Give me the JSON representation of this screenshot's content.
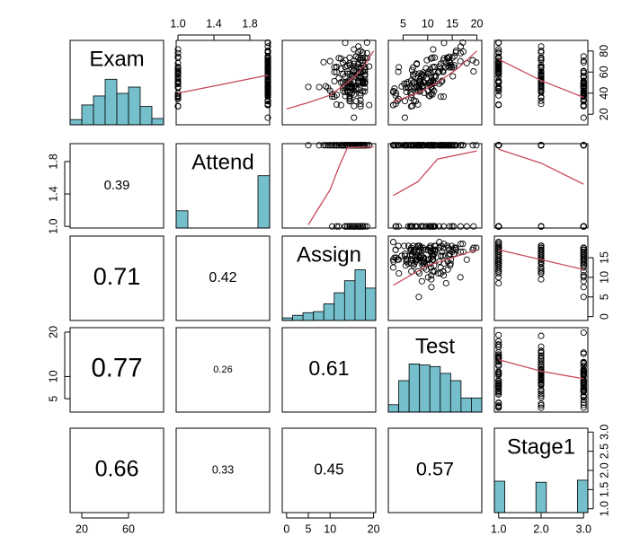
{
  "chart_data": {
    "type": "scatter",
    "variables": [
      "Exam",
      "Attend",
      "Assign",
      "Test",
      "Stage1"
    ],
    "axis_ticks": {
      "top": {
        "Attend": [
          "1.0",
          "1.4",
          "1.8"
        ],
        "Test": [
          "5",
          "10",
          "15",
          "20"
        ]
      },
      "right": {
        "Exam": [
          "20",
          "40",
          "60",
          "80"
        ],
        "Assign": [
          "0",
          "5",
          "10",
          "15"
        ],
        "Stage1": [
          "1.0",
          "1.5",
          "2.0",
          "2.5",
          "3.0"
        ]
      },
      "left": {
        "Attend": [
          "1.0",
          "1.4",
          "1.8"
        ],
        "Test": [
          "5",
          "10",
          "20"
        ]
      },
      "bottom": {
        "Exam": [
          "20",
          "60"
        ],
        "Assign": [
          "0",
          "5",
          "10",
          "20"
        ],
        "Stage1": [
          "1.0",
          "2.0",
          "3.0"
        ]
      }
    },
    "axis_ranges": {
      "Exam": [
        10,
        90
      ],
      "Attend": [
        0.98,
        2.02
      ],
      "Assign": [
        -1,
        20.5
      ],
      "Test": [
        2,
        21
      ],
      "Stage1": [
        0.9,
        3.1
      ]
    },
    "correlations": [
      {
        "row": "Attend",
        "col": "Exam",
        "value": "0.39"
      },
      {
        "row": "Assign",
        "col": "Exam",
        "value": "0.71"
      },
      {
        "row": "Assign",
        "col": "Attend",
        "value": "0.42"
      },
      {
        "row": "Test",
        "col": "Exam",
        "value": "0.77"
      },
      {
        "row": "Test",
        "col": "Attend",
        "value": "0.26"
      },
      {
        "row": "Test",
        "col": "Assign",
        "value": "0.61"
      },
      {
        "row": "Stage1",
        "col": "Exam",
        "value": "0.66"
      },
      {
        "row": "Stage1",
        "col": "Attend",
        "value": "0.33"
      },
      {
        "row": "Stage1",
        "col": "Assign",
        "value": "0.45"
      },
      {
        "row": "Stage1",
        "col": "Test",
        "value": "0.57"
      }
    ],
    "histograms": {
      "Exam": [
        0.1,
        0.38,
        0.55,
        0.87,
        0.6,
        0.72,
        0.35,
        0.12
      ],
      "Attend": [
        0.33,
        0,
        0,
        0,
        0,
        0,
        0,
        1.0
      ],
      "Assign": [
        0.05,
        0.1,
        0.15,
        0.17,
        0.32,
        0.53,
        0.76,
        0.97,
        0.62
      ],
      "Test": [
        0.14,
        0.6,
        0.92,
        0.9,
        0.87,
        0.74,
        0.6,
        0.27,
        0.27
      ],
      "Stage1": [
        0.6,
        0,
        0,
        0,
        0.58,
        0,
        0,
        0,
        0.62
      ]
    },
    "smoothers": {
      "Exam|Attend": [
        [
          1.0,
          40
        ],
        [
          2.0,
          57
        ]
      ],
      "Exam|Assign": [
        [
          0,
          25
        ],
        [
          5,
          31
        ],
        [
          10,
          38
        ],
        [
          13,
          47
        ],
        [
          16,
          57
        ],
        [
          18,
          67
        ],
        [
          20,
          80
        ]
      ],
      "Exam|Test": [
        [
          3,
          32
        ],
        [
          8,
          40
        ],
        [
          12,
          50
        ],
        [
          16,
          63
        ],
        [
          20,
          80
        ]
      ],
      "Exam|Stage1": [
        [
          1,
          72
        ],
        [
          2,
          52
        ],
        [
          3,
          36
        ]
      ],
      "Attend|Exam": [
        [
          12,
          1.02
        ],
        [
          30,
          1.06
        ],
        [
          40,
          1.35
        ],
        [
          45,
          1.78
        ],
        [
          50,
          1.96
        ],
        [
          60,
          1.98
        ],
        [
          85,
          1.98
        ]
      ],
      "Attend|Assign": [
        [
          5,
          1.02
        ],
        [
          8,
          1.28
        ],
        [
          10,
          1.45
        ],
        [
          12,
          1.73
        ],
        [
          14,
          1.97
        ],
        [
          20,
          1.98
        ]
      ],
      "Attend|Test": [
        [
          3,
          1.38
        ],
        [
          8,
          1.55
        ],
        [
          12,
          1.83
        ],
        [
          20,
          1.93
        ]
      ],
      "Attend|Stage1": [
        [
          1,
          1.95
        ],
        [
          2,
          1.78
        ],
        [
          3,
          1.52
        ]
      ],
      "Assign|Exam": [
        [
          12,
          2
        ],
        [
          25,
          5
        ],
        [
          40,
          10
        ],
        [
          60,
          14
        ],
        [
          80,
          17
        ],
        [
          90,
          18
        ]
      ],
      "Assign|Test": [
        [
          3,
          8
        ],
        [
          10,
          13
        ],
        [
          15,
          15
        ],
        [
          20,
          17
        ]
      ],
      "Assign|Stage1": [
        [
          1,
          17
        ],
        [
          2,
          14.5
        ],
        [
          3,
          12
        ]
      ],
      "Test|Stage1": [
        [
          1,
          13.8
        ],
        [
          2,
          11.2
        ],
        [
          3,
          9.5
        ]
      ]
    },
    "point_color": "#000000",
    "bar_color": "#74bfcb",
    "smoother_color": "#c84a5c"
  }
}
